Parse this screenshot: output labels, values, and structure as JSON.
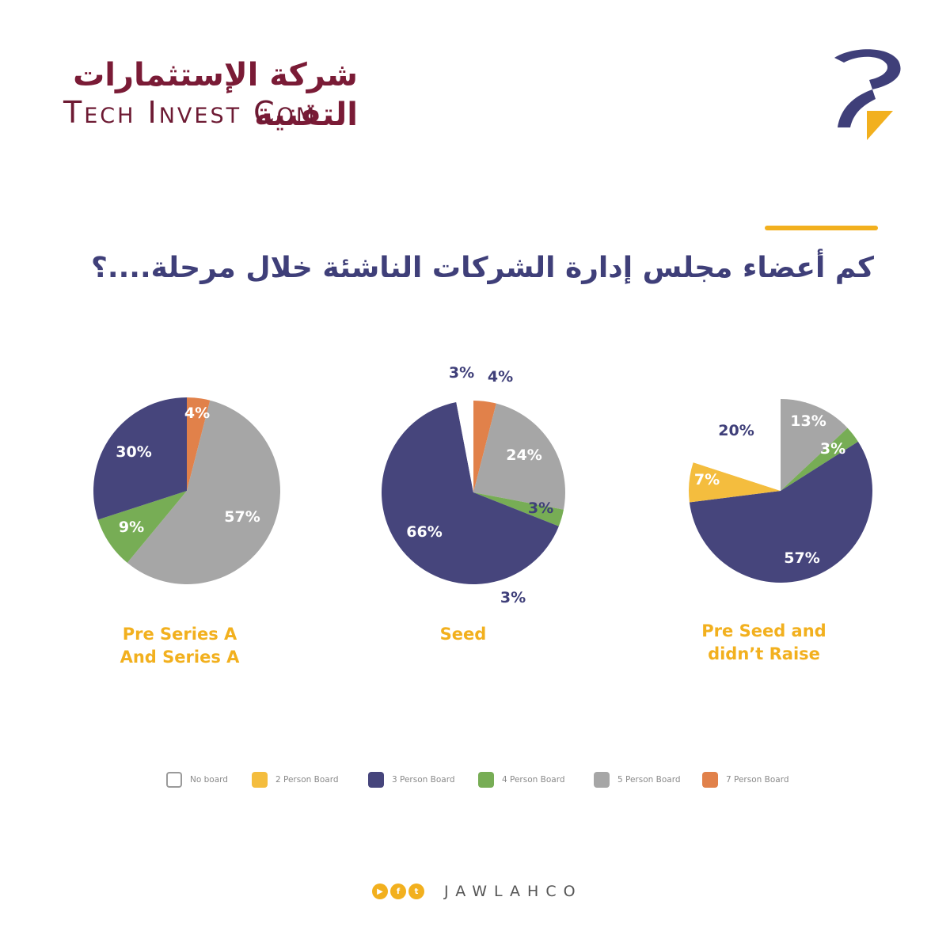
{
  "header": {
    "brand_arabic": "شركة الإستثمارات التقنية",
    "brand_english": "Tech Invest Com"
  },
  "title": "كم أعضاء مجلس إدارة الشركات الناشئة خلال مرحلة....؟",
  "colors": {
    "No board": "#ffffff",
    "2 Person Board": "#f4bd3e",
    "3 Person Board": "#46457c",
    "4 Person Board": "#77ad55",
    "5 Person Board": "#a6a6a6",
    "7 Person Board": "#e1814a",
    "accent": "#f2b01e",
    "title": "#3f3f79",
    "brand": "#7a1b36"
  },
  "legend": [
    {
      "label": "No board",
      "color": "#ffffff"
    },
    {
      "label": "2 Person Board",
      "color": "#f4bd3e"
    },
    {
      "label": "3 Person Board",
      "color": "#46457c"
    },
    {
      "label": "4 Person Board",
      "color": "#77ad55"
    },
    {
      "label": "5  Person Board",
      "color": "#a6a6a6"
    },
    {
      "label": "7  Person Board",
      "color": "#e1814a"
    }
  ],
  "chart_data": [
    {
      "type": "pie",
      "title": "Pre Series A And Series A",
      "caption_lines": [
        "Pre Series A",
        "And Series A"
      ],
      "slices": [
        {
          "category": "7 Person Board",
          "value": 4,
          "label": "4%"
        },
        {
          "category": "5 Person Board",
          "value": 57,
          "label": "57%"
        },
        {
          "category": "4 Person Board",
          "value": 9,
          "label": "9%"
        },
        {
          "category": "3 Person Board",
          "value": 30,
          "label": "30%"
        }
      ]
    },
    {
      "type": "pie",
      "title": "Seed",
      "caption_lines": [
        "Seed"
      ],
      "slices": [
        {
          "category": "7 Person Board",
          "value": 4,
          "label": "4%"
        },
        {
          "category": "5 Person Board",
          "value": 24,
          "label": "24%"
        },
        {
          "category": "4 Person Board",
          "value": 3,
          "label": "3%"
        },
        {
          "category": "3 Person Board",
          "value": 66,
          "label": "66%"
        },
        {
          "category": "No board",
          "value": 3,
          "label": "3%"
        }
      ],
      "extra_label": "3%"
    },
    {
      "type": "pie",
      "title": "Pre Seed and didn't Raise",
      "caption_lines": [
        "Pre Seed and",
        "didn’t Raise"
      ],
      "slices": [
        {
          "category": "5 Person Board",
          "value": 13,
          "label": "13%"
        },
        {
          "category": "4 Person Board",
          "value": 3,
          "label": "3%"
        },
        {
          "category": "3 Person Board",
          "value": 57,
          "label": "57%"
        },
        {
          "category": "2 Person Board",
          "value": 7,
          "label": "7%"
        },
        {
          "category": "No board",
          "value": 20,
          "label": "20%"
        }
      ]
    }
  ],
  "footer": {
    "brand": "JAWLAHCO",
    "social_icons": [
      "youtube-icon",
      "facebook-icon",
      "twitter-icon"
    ]
  }
}
